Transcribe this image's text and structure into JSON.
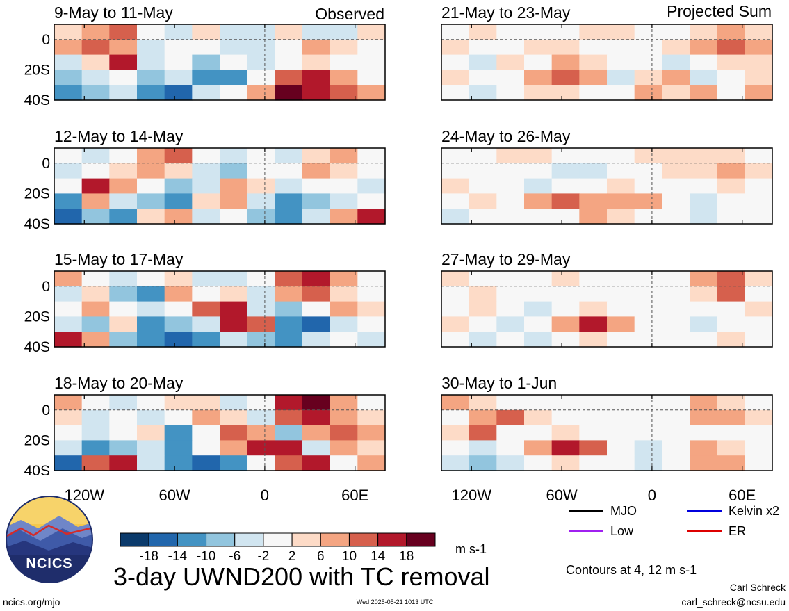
{
  "chart_data": {
    "type": "heatmap",
    "title": "3-day UWND200 with TC removal",
    "units": "m s-1",
    "panel_group_labels": [
      "Observed",
      "Projected Sum"
    ],
    "panels": [
      {
        "col": 0,
        "row": 0,
        "title": "9-May to 11-May"
      },
      {
        "col": 0,
        "row": 1,
        "title": "12-May to 14-May"
      },
      {
        "col": 0,
        "row": 2,
        "title": "15-May to 17-May"
      },
      {
        "col": 0,
        "row": 3,
        "title": "18-May to 20-May"
      },
      {
        "col": 1,
        "row": 0,
        "title": "21-May to 23-May"
      },
      {
        "col": 1,
        "row": 1,
        "title": "24-May to 26-May"
      },
      {
        "col": 1,
        "row": 2,
        "title": "27-May to 29-May"
      },
      {
        "col": 1,
        "row": 3,
        "title": "30-May to 1-Jun"
      }
    ],
    "y_ticks": [
      {
        "lat": 0,
        "label": "0"
      },
      {
        "lat": -20,
        "label": "20S"
      },
      {
        "lat": -40,
        "label": "40S"
      }
    ],
    "x_ticks": [
      {
        "lon": -120,
        "label": "120W"
      },
      {
        "lon": -60,
        "label": "60W"
      },
      {
        "lon": 0,
        "label": "0"
      },
      {
        "lon": 60,
        "label": "60E"
      }
    ],
    "lon_range": [
      -140,
      80
    ],
    "lat_range": [
      -40,
      10
    ],
    "colorbar": {
      "levels": [
        -18,
        -14,
        -10,
        -6,
        -2,
        2,
        6,
        10,
        14,
        18
      ],
      "labels": [
        "-18",
        "-14",
        "-10",
        "-6",
        "-2",
        "2",
        "6",
        "10",
        "14",
        "18"
      ],
      "colors": [
        "#0b3a6b",
        "#2166ac",
        "#4393c3",
        "#92c5de",
        "#d1e5f0",
        "#f7f7f7",
        "#fddbc7",
        "#f4a582",
        "#d6604d",
        "#b2182b",
        "#67001f"
      ]
    },
    "legend": [
      {
        "label": "MJO",
        "color": "#000000"
      },
      {
        "label": "Kelvin x2",
        "color": "#0000dd"
      },
      {
        "label": "Low",
        "color": "#a020f0"
      },
      {
        "label": "ER",
        "color": "#dd0000"
      }
    ],
    "contour_note": "Contours at 4, 12 m s-1",
    "cells": [
      [
        [
          2,
          6,
          10,
          -2,
          -6,
          4,
          -6,
          -4,
          2,
          -4,
          -6,
          2
        ],
        [
          6,
          10,
          6,
          -6,
          -2,
          0,
          -4,
          -6,
          -2,
          6,
          2,
          0
        ],
        [
          -6,
          2,
          14,
          -6,
          -2,
          -10,
          -2,
          -6,
          -2,
          2,
          -2,
          -2
        ],
        [
          -10,
          -6,
          -2,
          -10,
          -6,
          -14,
          -14,
          -2,
          10,
          14,
          6,
          -2
        ],
        [
          -14,
          -10,
          -6,
          -14,
          -18,
          -6,
          -2,
          6,
          18,
          14,
          10,
          6
        ]
      ],
      [
        [
          -2,
          -6,
          -2,
          6,
          10,
          -2,
          -6,
          -2,
          -6,
          2,
          6,
          -2
        ],
        [
          -6,
          -2,
          2,
          6,
          2,
          -6,
          -10,
          -2,
          -2,
          6,
          2,
          0
        ],
        [
          -2,
          14,
          6,
          -2,
          -10,
          -6,
          6,
          2,
          -6,
          -2,
          -2,
          -6
        ],
        [
          -14,
          6,
          -6,
          -10,
          -14,
          2,
          6,
          -6,
          -14,
          -10,
          -6,
          -2
        ],
        [
          -18,
          -10,
          -14,
          2,
          6,
          -6,
          -2,
          -10,
          -14,
          -6,
          6,
          14
        ]
      ],
      [
        [
          6,
          -2,
          -6,
          -2,
          2,
          -6,
          -6,
          -2,
          10,
          14,
          6,
          -2
        ],
        [
          -6,
          2,
          -10,
          -14,
          6,
          -2,
          2,
          -6,
          6,
          10,
          2,
          -2
        ],
        [
          -2,
          6,
          -2,
          -6,
          -2,
          10,
          14,
          -6,
          -10,
          -2,
          6,
          2
        ],
        [
          -6,
          -10,
          2,
          -14,
          -10,
          -6,
          14,
          10,
          -14,
          -18,
          -6,
          -2
        ],
        [
          14,
          6,
          -10,
          -14,
          -18,
          -14,
          -6,
          -10,
          -14,
          -6,
          -2,
          -6
        ]
      ],
      [
        [
          6,
          -2,
          -6,
          -2,
          2,
          2,
          -6,
          -2,
          14,
          18,
          6,
          -2
        ],
        [
          2,
          -6,
          -2,
          -6,
          -2,
          6,
          2,
          -6,
          10,
          14,
          6,
          2
        ],
        [
          -2,
          -6,
          -2,
          2,
          -14,
          -2,
          10,
          6,
          -10,
          6,
          10,
          6
        ],
        [
          -6,
          -14,
          -10,
          -6,
          -14,
          -2,
          6,
          14,
          14,
          -6,
          6,
          2
        ],
        [
          -18,
          10,
          14,
          -6,
          -14,
          -18,
          -14,
          -2,
          10,
          14,
          -2,
          6
        ]
      ],
      [
        [
          -2,
          2,
          -2,
          -2,
          -2,
          2,
          2,
          -2,
          -2,
          2,
          6,
          2
        ],
        [
          2,
          -2,
          -2,
          2,
          2,
          -2,
          -2,
          -2,
          2,
          6,
          10,
          6
        ],
        [
          -2,
          -6,
          2,
          -2,
          6,
          2,
          -2,
          -2,
          -6,
          -2,
          2,
          2
        ],
        [
          2,
          -2,
          -2,
          6,
          10,
          6,
          -6,
          2,
          6,
          -6,
          -2,
          2
        ],
        [
          -2,
          -6,
          -2,
          2,
          2,
          -2,
          -2,
          6,
          2,
          6,
          -2,
          6
        ]
      ],
      [
        [
          -2,
          -2,
          2,
          2,
          -2,
          -2,
          -2,
          2,
          2,
          2,
          2,
          -2
        ],
        [
          -2,
          -2,
          -2,
          -2,
          -6,
          -6,
          -2,
          -2,
          2,
          2,
          6,
          2
        ],
        [
          2,
          -2,
          -2,
          -6,
          -2,
          -2,
          2,
          -2,
          -2,
          -2,
          2,
          -2
        ],
        [
          -2,
          2,
          -2,
          6,
          10,
          6,
          6,
          6,
          -2,
          -6,
          -2,
          -2
        ],
        [
          -6,
          -2,
          -2,
          -2,
          -2,
          6,
          2,
          -2,
          -2,
          -6,
          -2,
          -2
        ]
      ],
      [
        [
          2,
          -2,
          -2,
          -2,
          2,
          -2,
          -2,
          -2,
          -2,
          6,
          10,
          2
        ],
        [
          -2,
          2,
          -2,
          -2,
          -2,
          -2,
          -2,
          -2,
          -2,
          2,
          10,
          -2
        ],
        [
          -2,
          2,
          -2,
          -6,
          -2,
          2,
          -2,
          -2,
          -2,
          -2,
          -2,
          2
        ],
        [
          2,
          -2,
          -6,
          -2,
          6,
          14,
          6,
          -2,
          -2,
          -6,
          -2,
          -2
        ],
        [
          -2,
          -6,
          -2,
          -6,
          -2,
          2,
          -2,
          -2,
          -2,
          -2,
          2,
          -2
        ]
      ],
      [
        [
          6,
          2,
          -2,
          -2,
          -2,
          -2,
          -2,
          -2,
          -2,
          6,
          2,
          -2
        ],
        [
          -2,
          6,
          10,
          2,
          -2,
          -2,
          -2,
          -2,
          -2,
          6,
          6,
          2
        ],
        [
          2,
          10,
          -2,
          -2,
          2,
          -2,
          -2,
          -2,
          -2,
          -2,
          -2,
          -2
        ],
        [
          -2,
          -6,
          -2,
          6,
          14,
          10,
          -2,
          -6,
          -2,
          6,
          2,
          -2
        ],
        [
          -6,
          -10,
          -6,
          -2,
          2,
          -2,
          -2,
          -6,
          -2,
          6,
          6,
          -2
        ]
      ]
    ]
  },
  "footer": {
    "logo_text": "NCICS",
    "url": "ncics.org/mjo",
    "timestamp": "Wed 2025-05-21 1013 UTC",
    "author": "Carl Schreck",
    "email": "carl_schreck@ncsu.edu"
  }
}
